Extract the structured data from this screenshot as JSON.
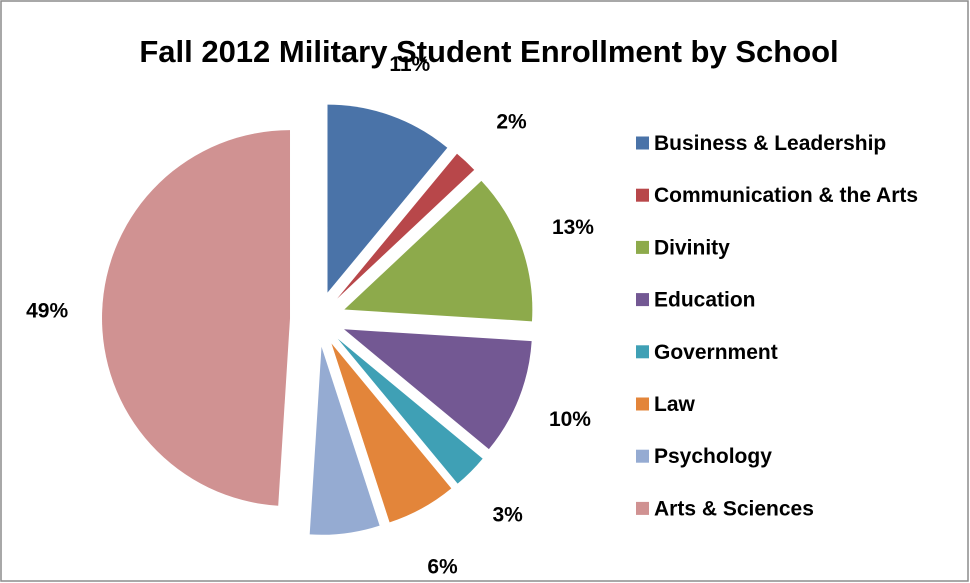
{
  "chart_data": {
    "type": "pie",
    "title": "Fall 2012 Military Student Enrollment by School",
    "exploded": true,
    "legend_position": "right",
    "slices": [
      {
        "label": "Business & Leadership",
        "value": 11,
        "display": "11%",
        "color": "#4A73A8"
      },
      {
        "label": "Communication & the Arts",
        "value": 2,
        "display": "2%",
        "color": "#B8474A"
      },
      {
        "label": "Divinity",
        "value": 13,
        "display": "13%",
        "color": "#8DAA4B"
      },
      {
        "label": "Education",
        "value": 10,
        "display": "10%",
        "color": "#735893"
      },
      {
        "label": "Government",
        "value": 3,
        "display": "3%",
        "color": "#3FA0B5"
      },
      {
        "label": "Law",
        "value": 6,
        "display": "6%",
        "color": "#E3853A"
      },
      {
        "label": "Psychology",
        "value": 6,
        "display": "6%",
        "color": "#95ABD2"
      },
      {
        "label": "Arts & Sciences",
        "value": 49,
        "display": "49%",
        "color": "#D09292"
      }
    ]
  },
  "colors": {
    "background": "#ffffff",
    "border": "#8c8c8c",
    "text": "#000000"
  }
}
